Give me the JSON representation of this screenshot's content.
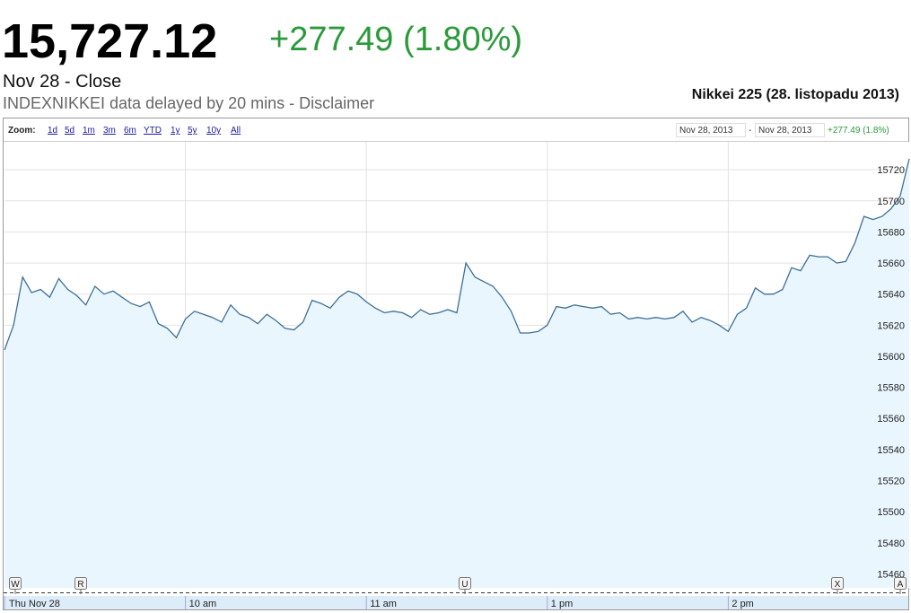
{
  "header": {
    "price": "15,727.12",
    "change": "+277.49 (1.80%)",
    "status": "Nov 28 - Close",
    "source": "INDEXNIKKEI data delayed by 20 mins - Disclaimer",
    "chart_title": "Nikkei 225 (28. listopadu 2013)"
  },
  "toolbar": {
    "zoom_label": "Zoom:",
    "zoom_options": [
      "1d",
      "5d",
      "1m",
      "3m",
      "6m",
      "YTD",
      "1y",
      "5y",
      "10y",
      "All"
    ],
    "range_start": "Nov 28, 2013",
    "range_separator": "-",
    "range_end": "Nov 28, 2013",
    "range_change": "+277.49 (1.8%)"
  },
  "chart_data": {
    "type": "line",
    "values": [
      15604,
      15620,
      15651,
      15641,
      15643,
      15638,
      15650,
      15643,
      15639,
      15633,
      15645,
      15640,
      15642,
      15638,
      15634,
      15632,
      15635,
      15621,
      15618,
      15612,
      15624,
      15629,
      15627,
      15625,
      15622,
      15633,
      15627,
      15625,
      15621,
      15627,
      15623,
      15618,
      15617,
      15622,
      15636,
      15634,
      15631,
      15638,
      15642,
      15640,
      15635,
      15631,
      15628,
      15629,
      15628,
      15625,
      15630,
      15627,
      15628,
      15630,
      15628,
      15660,
      15651,
      15648,
      15645,
      15638,
      15629,
      15615,
      15615,
      15616,
      15620,
      15632,
      15631,
      15633,
      15632,
      15631,
      15632,
      15627,
      15628,
      15624,
      15625,
      15624,
      15625,
      15624,
      15625,
      15629,
      15622,
      15625,
      15623,
      15620,
      15616,
      15627,
      15631,
      15644,
      15640,
      15640,
      15643,
      15657,
      15655,
      15665,
      15664,
      15664,
      15660,
      15661,
      15673,
      15690,
      15688,
      15690,
      15695,
      15703,
      15727
    ],
    "color": "#3d6f98",
    "fill": "#eaf6fd",
    "xlim": [
      0,
      100
    ],
    "xticks": [
      {
        "value": 0,
        "label": "Thu Nov 28"
      },
      {
        "value": 20,
        "label": "10 am"
      },
      {
        "value": 40,
        "label": "11 am"
      },
      {
        "value": 60,
        "label": "1 pm"
      },
      {
        "value": 80,
        "label": "2 pm"
      }
    ],
    "ylim": [
      15451,
      15738
    ],
    "yticks": [
      15460,
      15480,
      15500,
      15520,
      15540,
      15560,
      15580,
      15600,
      15620,
      15640,
      15660,
      15680,
      15700,
      15720
    ],
    "grid": true,
    "flags": [
      "W",
      "R",
      "U",
      "X",
      "A"
    ]
  }
}
